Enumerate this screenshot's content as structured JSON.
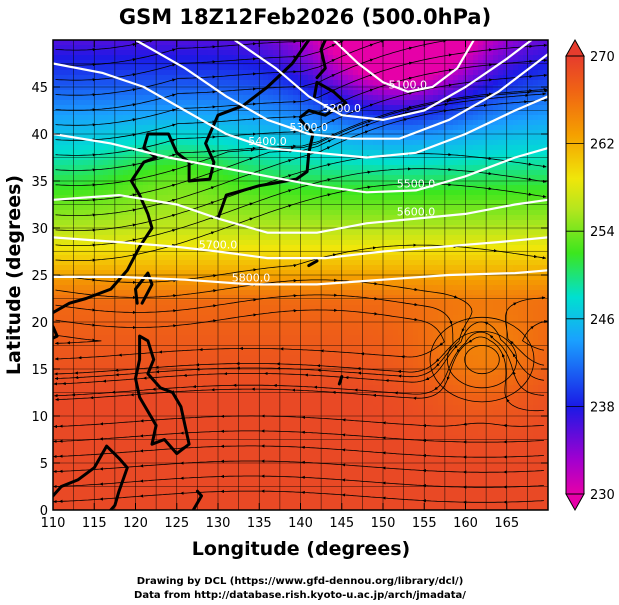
{
  "title": "GSM 18Z12Feb2026 (500.0hPa)",
  "xlabel": "Longitude (degrees)",
  "ylabel": "Latitude  (degrees)",
  "x_ticks": [
    "110",
    "115",
    "120",
    "125",
    "130",
    "135",
    "140",
    "145",
    "150",
    "155",
    "160",
    "165"
  ],
  "y_ticks": [
    "0",
    "5",
    "10",
    "15",
    "20",
    "25",
    "30",
    "35",
    "40",
    "45"
  ],
  "colorbar": {
    "ticks": [
      "270",
      "262",
      "254",
      "246",
      "238",
      "230"
    ],
    "min": 230,
    "max": 270
  },
  "contour_labels": [
    "5100.0",
    "5200.0",
    "5300.0",
    "5400.0",
    "5500.0",
    "5600.0",
    "5700.0",
    "5800.0"
  ],
  "credits": {
    "line1": "Drawing by DCL (https://www.gfd-dennou.org/library/dcl/)",
    "line2": "Data from http://database.rish.kyoto-u.ac.jp/arch/jmadata/"
  },
  "chart_data": {
    "type": "heatmap",
    "title": "GSM 18Z12Feb2026 (500.0hPa)",
    "xlabel": "Longitude (degrees)",
    "ylabel": "Latitude  (degrees)",
    "xlim": [
      110,
      170
    ],
    "ylim": [
      0,
      50
    ],
    "color_range": [
      230,
      270
    ],
    "contours": [
      {
        "level": "5100.0",
        "points": [
          [
            144,
            50
          ],
          [
            147,
            47.5
          ],
          [
            150,
            45.5
          ],
          [
            153,
            44.5
          ],
          [
            156,
            45
          ],
          [
            159,
            47
          ],
          [
            161,
            50
          ]
        ]
      },
      {
        "level": "5200.0",
        "points": [
          [
            132,
            50
          ],
          [
            137,
            47
          ],
          [
            141,
            44
          ],
          [
            145,
            42
          ],
          [
            150,
            41.5
          ],
          [
            155,
            42.5
          ],
          [
            160,
            45
          ],
          [
            165,
            48
          ],
          [
            168,
            50
          ]
        ]
      },
      {
        "level": "5300.0",
        "points": [
          [
            120,
            50
          ],
          [
            126,
            47
          ],
          [
            131,
            44
          ],
          [
            136,
            41.5
          ],
          [
            141,
            40
          ],
          [
            146,
            39.5
          ],
          [
            152,
            39.5
          ],
          [
            158,
            41.5
          ],
          [
            164,
            44.5
          ],
          [
            170,
            48.5
          ]
        ]
      },
      {
        "level": "5400.0",
        "points": [
          [
            110,
            47.5
          ],
          [
            116,
            46.5
          ],
          [
            121,
            45
          ],
          [
            126,
            42.5
          ],
          [
            131,
            40
          ],
          [
            136,
            38.5
          ],
          [
            142,
            38
          ],
          [
            148,
            37.5
          ],
          [
            154,
            38
          ],
          [
            160,
            40
          ],
          [
            166,
            42.5
          ],
          [
            170,
            44
          ]
        ]
      },
      {
        "level": "5500.0",
        "points": [
          [
            110,
            40
          ],
          [
            117,
            39
          ],
          [
            124,
            37.5
          ],
          [
            130,
            36.5
          ],
          [
            136,
            35.5
          ],
          [
            142,
            34.5
          ],
          [
            148,
            33.8
          ],
          [
            154,
            34
          ],
          [
            160,
            35.5
          ],
          [
            166,
            37.5
          ],
          [
            170,
            38.5
          ]
        ]
      },
      {
        "level": "5600.0",
        "points": [
          [
            110,
            33
          ],
          [
            118,
            33.5
          ],
          [
            125,
            32.5
          ],
          [
            130,
            31
          ],
          [
            136,
            29.5
          ],
          [
            142,
            29.5
          ],
          [
            148,
            30.5
          ],
          [
            154,
            31
          ],
          [
            160,
            31.5
          ],
          [
            166,
            32.5
          ],
          [
            170,
            33
          ]
        ]
      },
      {
        "level": "5700.0",
        "points": [
          [
            110,
            29
          ],
          [
            118,
            28.5
          ],
          [
            125,
            28
          ],
          [
            130,
            27.5
          ],
          [
            136,
            26.8
          ],
          [
            143,
            26.8
          ],
          [
            150,
            27.5
          ],
          [
            157,
            28
          ],
          [
            164,
            28.5
          ],
          [
            170,
            29
          ]
        ]
      },
      {
        "level": "5800.0",
        "points": [
          [
            110,
            24.8
          ],
          [
            118,
            24.8
          ],
          [
            126,
            24.5
          ],
          [
            134,
            24
          ],
          [
            142,
            24
          ],
          [
            150,
            24.5
          ],
          [
            158,
            25
          ],
          [
            166,
            25.2
          ],
          [
            170,
            25.5
          ]
        ]
      }
    ],
    "field_features": [
      {
        "name": "cold-core",
        "lon": 152,
        "lat": 49,
        "value": 232
      },
      {
        "name": "cyclonic-circulation",
        "lon": 162,
        "lat": 16
      }
    ]
  }
}
